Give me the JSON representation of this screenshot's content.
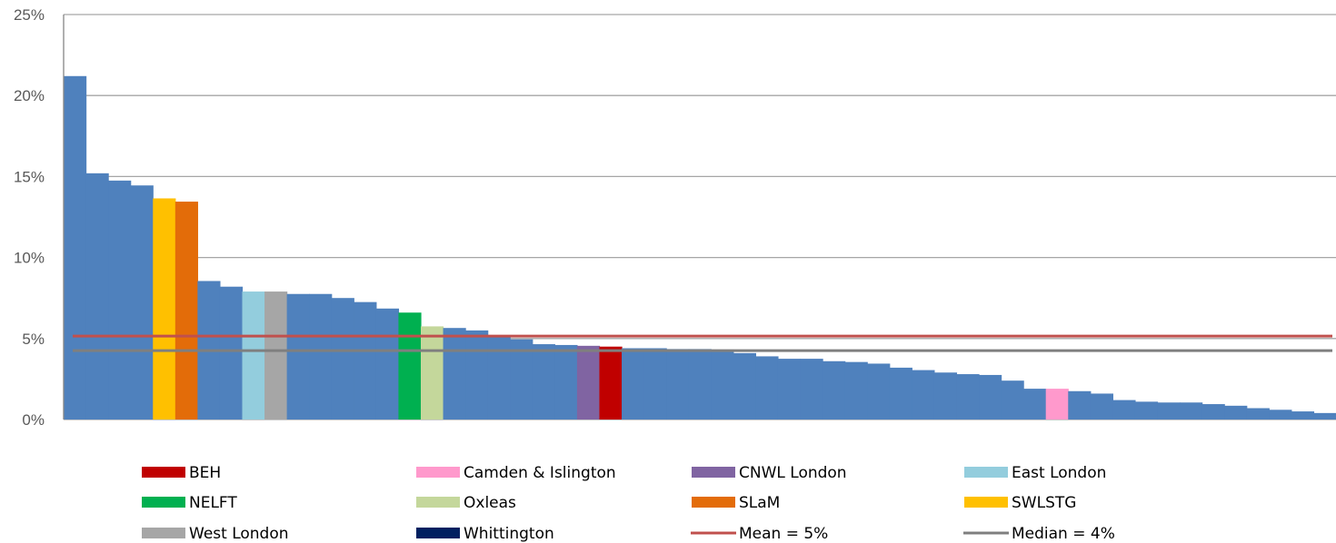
{
  "chart_data": {
    "type": "bar",
    "ylim": [
      0,
      25
    ],
    "yticks": [
      0,
      5,
      10,
      15,
      20,
      25
    ],
    "yticklabels": [
      "0%",
      "5%",
      "10%",
      "15%",
      "20%",
      "25%"
    ],
    "grid": true,
    "default_color": "#4f81bd",
    "bars": [
      {
        "value": 21.2,
        "group": null
      },
      {
        "value": 15.2,
        "group": null
      },
      {
        "value": 14.75,
        "group": null
      },
      {
        "value": 14.45,
        "group": null
      },
      {
        "value": 13.65,
        "group": "SWLSTG"
      },
      {
        "value": 13.45,
        "group": "SLaM"
      },
      {
        "value": 8.55,
        "group": null
      },
      {
        "value": 8.2,
        "group": null
      },
      {
        "value": 7.9,
        "group": "East London"
      },
      {
        "value": 7.9,
        "group": "West London"
      },
      {
        "value": 7.75,
        "group": null
      },
      {
        "value": 7.75,
        "group": null
      },
      {
        "value": 7.5,
        "group": null
      },
      {
        "value": 7.25,
        "group": null
      },
      {
        "value": 6.85,
        "group": null
      },
      {
        "value": 6.6,
        "group": "NELFT"
      },
      {
        "value": 5.75,
        "group": "Oxleas"
      },
      {
        "value": 5.65,
        "group": null
      },
      {
        "value": 5.5,
        "group": null
      },
      {
        "value": 5.2,
        "group": null
      },
      {
        "value": 4.95,
        "group": null
      },
      {
        "value": 4.65,
        "group": null
      },
      {
        "value": 4.6,
        "group": null
      },
      {
        "value": 4.55,
        "group": "CNWL London"
      },
      {
        "value": 4.5,
        "group": "BEH"
      },
      {
        "value": 4.4,
        "group": null
      },
      {
        "value": 4.4,
        "group": null
      },
      {
        "value": 4.35,
        "group": null
      },
      {
        "value": 4.35,
        "group": null
      },
      {
        "value": 4.3,
        "group": null
      },
      {
        "value": 4.1,
        "group": null
      },
      {
        "value": 3.9,
        "group": null
      },
      {
        "value": 3.75,
        "group": null
      },
      {
        "value": 3.75,
        "group": null
      },
      {
        "value": 3.6,
        "group": null
      },
      {
        "value": 3.55,
        "group": null
      },
      {
        "value": 3.45,
        "group": null
      },
      {
        "value": 3.2,
        "group": null
      },
      {
        "value": 3.05,
        "group": null
      },
      {
        "value": 2.9,
        "group": null
      },
      {
        "value": 2.8,
        "group": null
      },
      {
        "value": 2.75,
        "group": null
      },
      {
        "value": 2.4,
        "group": null
      },
      {
        "value": 1.9,
        "group": null
      },
      {
        "value": 1.9,
        "group": "Camden & Islington"
      },
      {
        "value": 1.75,
        "group": null
      },
      {
        "value": 1.6,
        "group": null
      },
      {
        "value": 1.2,
        "group": null
      },
      {
        "value": 1.1,
        "group": null
      },
      {
        "value": 1.05,
        "group": null
      },
      {
        "value": 1.05,
        "group": null
      },
      {
        "value": 0.95,
        "group": null
      },
      {
        "value": 0.85,
        "group": null
      },
      {
        "value": 0.7,
        "group": null
      },
      {
        "value": 0.6,
        "group": null
      },
      {
        "value": 0.5,
        "group": null
      },
      {
        "value": 0.4,
        "group": null
      }
    ],
    "reference_lines": [
      {
        "name": "Mean = 5%",
        "value": 5.15,
        "color": "#c0504d"
      },
      {
        "name": "Median = 4%",
        "value": 4.25,
        "color": "#7f7f7f"
      }
    ],
    "legend": {
      "placement": "bottom",
      "items": [
        {
          "label": "BEH",
          "color": "#c00000",
          "kind": "box"
        },
        {
          "label": "Camden & Islington",
          "color": "#ff99cc",
          "kind": "box"
        },
        {
          "label": "CNWL London",
          "color": "#8064a2",
          "kind": "box"
        },
        {
          "label": "East London",
          "color": "#93cddd",
          "kind": "box"
        },
        {
          "label": "NELFT",
          "color": "#00b050",
          "kind": "box"
        },
        {
          "label": "Oxleas",
          "color": "#c4d79b",
          "kind": "box"
        },
        {
          "label": "SLaM",
          "color": "#e36c09",
          "kind": "box"
        },
        {
          "label": "SWLSTG",
          "color": "#ffc000",
          "kind": "box"
        },
        {
          "label": "West London",
          "color": "#a6a6a6",
          "kind": "box"
        },
        {
          "label": "Whittington",
          "color": "#002060",
          "kind": "box"
        },
        {
          "label": "Mean = 5%",
          "color": "#c0504d",
          "kind": "line"
        },
        {
          "label": "Median = 4%",
          "color": "#7f7f7f",
          "kind": "line"
        }
      ]
    }
  }
}
